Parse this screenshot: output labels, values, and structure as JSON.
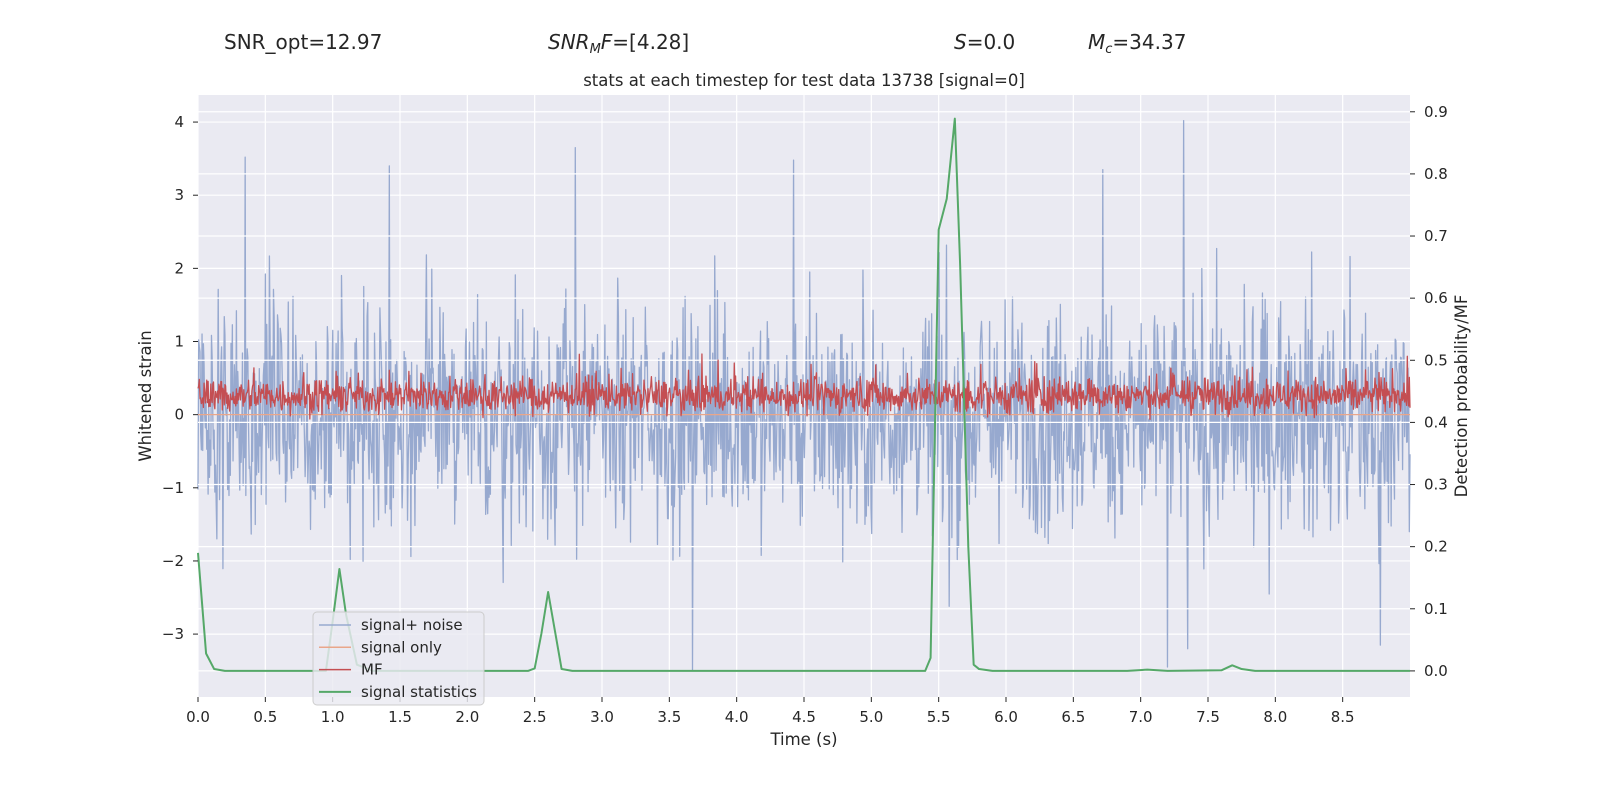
{
  "header": {
    "snr_opt": "SNR_opt=12.97",
    "snr_mf_symbol": "SNR",
    "snr_mf_subscript": "M",
    "snr_mf_suffix": "F",
    "snr_mf_value": "=[4.28]",
    "s_symbol": "S",
    "s_value": "=0.0",
    "mc_symbol": "M",
    "mc_subscript": "c",
    "mc_value": "=34.37"
  },
  "chart_data": {
    "type": "line",
    "title": "stats at each timestep for test data 13738 [signal=0]",
    "xlabel": "Time (s)",
    "ylabel_left": "Whitened strain",
    "ylabel_right": "Detection probability/MF",
    "xlim": [
      0.0,
      9.0
    ],
    "ylim_left": [
      -3.86,
      4.37
    ],
    "ylim_right": [
      -0.042,
      0.927
    ],
    "xticks": [
      0.0,
      0.5,
      1.0,
      1.5,
      2.0,
      2.5,
      3.0,
      3.5,
      4.0,
      4.5,
      5.0,
      5.5,
      6.0,
      6.5,
      7.0,
      7.5,
      8.0,
      8.5
    ],
    "xtick_labels": [
      "0.0",
      "0.5",
      "1.0",
      "1.5",
      "2.0",
      "2.5",
      "3.0",
      "3.5",
      "4.0",
      "4.5",
      "5.0",
      "5.5",
      "6.0",
      "6.5",
      "7.0",
      "7.5",
      "8.0",
      "8.5"
    ],
    "yticks_left": [
      -3,
      -2,
      -1,
      0,
      1,
      2,
      3,
      4
    ],
    "ytick_labels_left": [
      "−3",
      "−2",
      "−1",
      "0",
      "1",
      "2",
      "3",
      "4"
    ],
    "yticks_right": [
      0.0,
      0.1,
      0.2,
      0.3,
      0.4,
      0.5,
      0.6,
      0.7,
      0.8,
      0.9
    ],
    "ytick_labels_right": [
      "0.0",
      "0.1",
      "0.2",
      "0.3",
      "0.4",
      "0.5",
      "0.6",
      "0.7",
      "0.8",
      "0.9"
    ],
    "grid": true,
    "legend_position": "lower-left",
    "series": [
      {
        "name": "signal+ noise",
        "color": "#97a9cf",
        "axis": "left",
        "sample_count": 1800,
        "typical_range": [
          -1.8,
          1.6
        ],
        "peaks": [
          {
            "x": 0.35,
            "y": 3.52
          },
          {
            "x": 1.42,
            "y": 3.4
          },
          {
            "x": 2.8,
            "y": 3.65
          },
          {
            "x": 4.42,
            "y": 3.48
          },
          {
            "x": 7.32,
            "y": 4.02
          },
          {
            "x": 6.72,
            "y": 3.35
          }
        ],
        "troughs": [
          {
            "x": 3.67,
            "y": -3.5
          },
          {
            "x": 5.58,
            "y": -2.62
          },
          {
            "x": 7.2,
            "y": -3.45
          },
          {
            "x": 7.35,
            "y": -3.2
          },
          {
            "x": 8.78,
            "y": -3.15
          }
        ]
      },
      {
        "name": "signal only",
        "color": "#e9a68a",
        "axis": "left",
        "x": [
          0.0,
          9.0
        ],
        "y": [
          0.0,
          0.0
        ]
      },
      {
        "name": "MF",
        "color": "#c44e52",
        "axis": "right",
        "sample_count": 1800,
        "typical_range": [
          0.41,
          0.475
        ],
        "max_value": 0.51
      },
      {
        "name": "signal statistics",
        "color": "#55a868",
        "axis": "right",
        "x": [
          0.0,
          0.06,
          0.12,
          0.2,
          0.3,
          0.95,
          1.0,
          1.05,
          1.1,
          1.18,
          1.3,
          2.45,
          2.5,
          2.55,
          2.6,
          2.65,
          2.7,
          2.78,
          2.9,
          5.4,
          5.44,
          5.5,
          5.56,
          5.62,
          5.66,
          5.72,
          5.76,
          5.8,
          5.9,
          6.9,
          7.05,
          7.2,
          7.6,
          7.68,
          7.75,
          7.85,
          9.0
        ],
        "y": [
          0.19,
          0.028,
          0.003,
          0.0,
          0.0,
          0.0,
          0.08,
          0.164,
          0.09,
          0.01,
          0.0,
          0.0,
          0.004,
          0.06,
          0.127,
          0.065,
          0.003,
          0.0,
          0.0,
          0.0,
          0.021,
          0.71,
          0.76,
          0.889,
          0.65,
          0.2,
          0.01,
          0.003,
          0.0,
          0.0,
          0.002,
          0.0,
          0.001,
          0.009,
          0.003,
          0.0,
          0.0
        ]
      }
    ]
  }
}
